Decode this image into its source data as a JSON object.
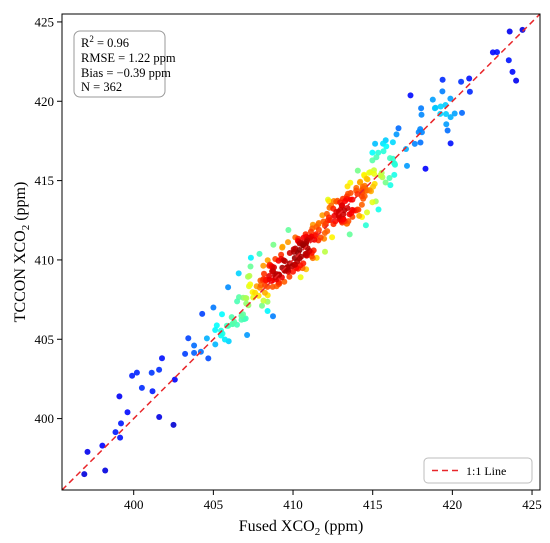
{
  "chart_data": {
    "type": "scatter",
    "title": "",
    "xlabel": {
      "main": "Fused XCO",
      "sub": "2",
      "unit": " (ppm)"
    },
    "ylabel": {
      "main": "TCCON XCO",
      "sub": "2",
      "unit": " (ppm)"
    },
    "xlim": [
      395.5,
      425.5
    ],
    "ylim": [
      395.5,
      425.5
    ],
    "xticks": [
      400,
      405,
      410,
      415,
      420,
      425
    ],
    "yticks": [
      400,
      405,
      410,
      415,
      420,
      425
    ],
    "grid": false,
    "colormap": "jet (point density)",
    "stats": {
      "r2": {
        "main": "R",
        "sup": "2",
        "rest": " = 0.96"
      },
      "rmse": "RMSE = 1.22 ppm",
      "bias": "Bias = −0.39 ppm",
      "n": "N = 362"
    },
    "reference_line": {
      "label": "1:1 Line",
      "color": "#e8262a",
      "style": "dashed",
      "x": [
        395.5,
        425.5
      ],
      "y": [
        395.5,
        425.5
      ]
    },
    "legend_position": "lower-right",
    "n_points": 362,
    "points_sample": [
      {
        "x": 396.9,
        "y": 396.5
      },
      {
        "x": 397.1,
        "y": 397.9
      },
      {
        "x": 399.2,
        "y": 399.7
      },
      {
        "x": 399.1,
        "y": 401.4
      },
      {
        "x": 399.9,
        "y": 402.7
      },
      {
        "x": 400.2,
        "y": 402.9
      },
      {
        "x": 401.6,
        "y": 400.1
      },
      {
        "x": 402.5,
        "y": 399.6
      },
      {
        "x": 404.3,
        "y": 406.6
      },
      {
        "x": 405.0,
        "y": 407.0
      },
      {
        "x": 406.3,
        "y": 406.1
      },
      {
        "x": 408.4,
        "y": 408.3
      },
      {
        "x": 409.3,
        "y": 408.9
      },
      {
        "x": 410.5,
        "y": 410.2
      },
      {
        "x": 411.3,
        "y": 410.6
      },
      {
        "x": 413.0,
        "y": 412.5
      },
      {
        "x": 414.8,
        "y": 414.4
      },
      {
        "x": 416.4,
        "y": 416.0
      },
      {
        "x": 418.0,
        "y": 417.4
      },
      {
        "x": 419.6,
        "y": 419.2
      },
      {
        "x": 421.1,
        "y": 420.6
      },
      {
        "x": 422.8,
        "y": 423.1
      },
      {
        "x": 423.6,
        "y": 424.4
      },
      {
        "x": 424.4,
        "y": 424.5
      },
      {
        "x": 424.0,
        "y": 421.3
      }
    ]
  }
}
